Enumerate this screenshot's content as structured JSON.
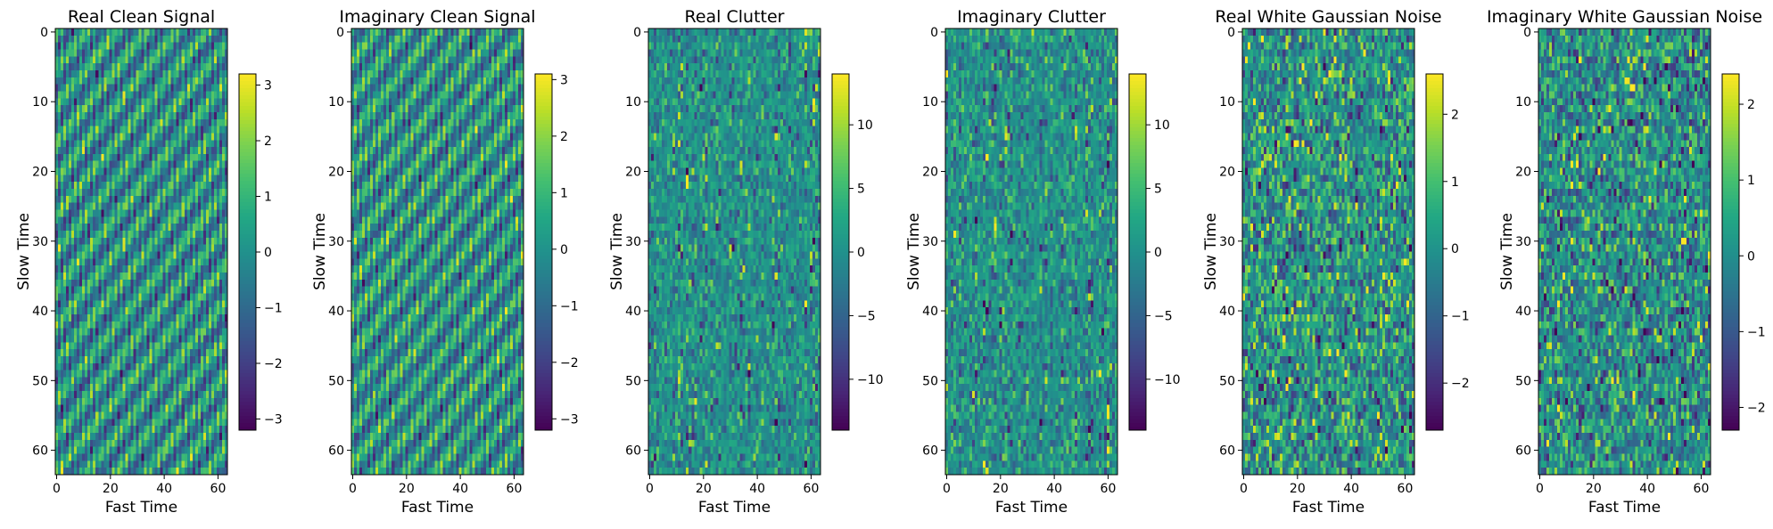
{
  "chart_data": [
    {
      "type": "heatmap",
      "title": "Real Clean Signal",
      "xlabel": "Fast Time",
      "ylabel": "Slow Time",
      "rows": 64,
      "cols": 64,
      "pattern": "diagonal-stripes",
      "x_ticks": [
        0,
        20,
        40,
        60
      ],
      "y_ticks": [
        0,
        10,
        20,
        30,
        40,
        50,
        60
      ],
      "vmin": -3.2,
      "vmax": 3.2,
      "colorbar_ticks": [
        3,
        2,
        1,
        0,
        -1,
        -2,
        -3
      ],
      "colorbar_tick_labels": [
        "3",
        "2",
        "1",
        "0",
        "−1",
        "−2",
        "−3"
      ]
    },
    {
      "type": "heatmap",
      "title": "Imaginary Clean Signal",
      "xlabel": "Fast Time",
      "ylabel": "Slow Time",
      "rows": 64,
      "cols": 64,
      "pattern": "diagonal-stripes",
      "x_ticks": [
        0,
        20,
        40,
        60
      ],
      "y_ticks": [
        0,
        10,
        20,
        30,
        40,
        50,
        60
      ],
      "vmin": -3.2,
      "vmax": 3.1,
      "colorbar_ticks": [
        3,
        2,
        1,
        0,
        -1,
        -2,
        -3
      ],
      "colorbar_tick_labels": [
        "3",
        "2",
        "1",
        "0",
        "−1",
        "−2",
        "−3"
      ]
    },
    {
      "type": "heatmap",
      "title": "Real Clutter",
      "xlabel": "Fast Time",
      "ylabel": "Slow Time",
      "rows": 64,
      "cols": 64,
      "pattern": "clutter",
      "x_ticks": [
        0,
        20,
        40,
        60
      ],
      "y_ticks": [
        0,
        10,
        20,
        30,
        40,
        50,
        60
      ],
      "vmin": -14,
      "vmax": 14,
      "colorbar_ticks": [
        10,
        5,
        0,
        -5,
        -10
      ],
      "colorbar_tick_labels": [
        "10",
        "5",
        "0",
        "−5",
        "−10"
      ]
    },
    {
      "type": "heatmap",
      "title": "Imaginary Clutter",
      "xlabel": "Fast Time",
      "ylabel": "Slow Time",
      "rows": 64,
      "cols": 64,
      "pattern": "clutter",
      "x_ticks": [
        0,
        20,
        40,
        60
      ],
      "y_ticks": [
        0,
        10,
        20,
        30,
        40,
        50,
        60
      ],
      "vmin": -14,
      "vmax": 14,
      "colorbar_ticks": [
        10,
        5,
        0,
        -5,
        -10
      ],
      "colorbar_tick_labels": [
        "10",
        "5",
        "0",
        "−5",
        "−10"
      ]
    },
    {
      "type": "heatmap",
      "title": "Real White Gaussian Noise",
      "xlabel": "Fast Time",
      "ylabel": "Slow Time",
      "rows": 64,
      "cols": 64,
      "pattern": "noise",
      "x_ticks": [
        0,
        20,
        40,
        60
      ],
      "y_ticks": [
        0,
        10,
        20,
        30,
        40,
        50,
        60
      ],
      "vmin": -2.7,
      "vmax": 2.6,
      "colorbar_ticks": [
        2,
        1,
        0,
        -1,
        -2
      ],
      "colorbar_tick_labels": [
        "2",
        "1",
        "0",
        "−1",
        "−2"
      ]
    },
    {
      "type": "heatmap",
      "title": "Imaginary White Gaussian Noise",
      "xlabel": "Fast Time",
      "ylabel": "Slow Time",
      "rows": 64,
      "cols": 64,
      "pattern": "noise",
      "x_ticks": [
        0,
        20,
        40,
        60
      ],
      "y_ticks": [
        0,
        10,
        20,
        30,
        40,
        50,
        60
      ],
      "vmin": -2.3,
      "vmax": 2.4,
      "colorbar_ticks": [
        2,
        1,
        0,
        -1,
        -2
      ],
      "colorbar_tick_labels": [
        "2",
        "1",
        "0",
        "−1",
        "−2"
      ]
    }
  ]
}
